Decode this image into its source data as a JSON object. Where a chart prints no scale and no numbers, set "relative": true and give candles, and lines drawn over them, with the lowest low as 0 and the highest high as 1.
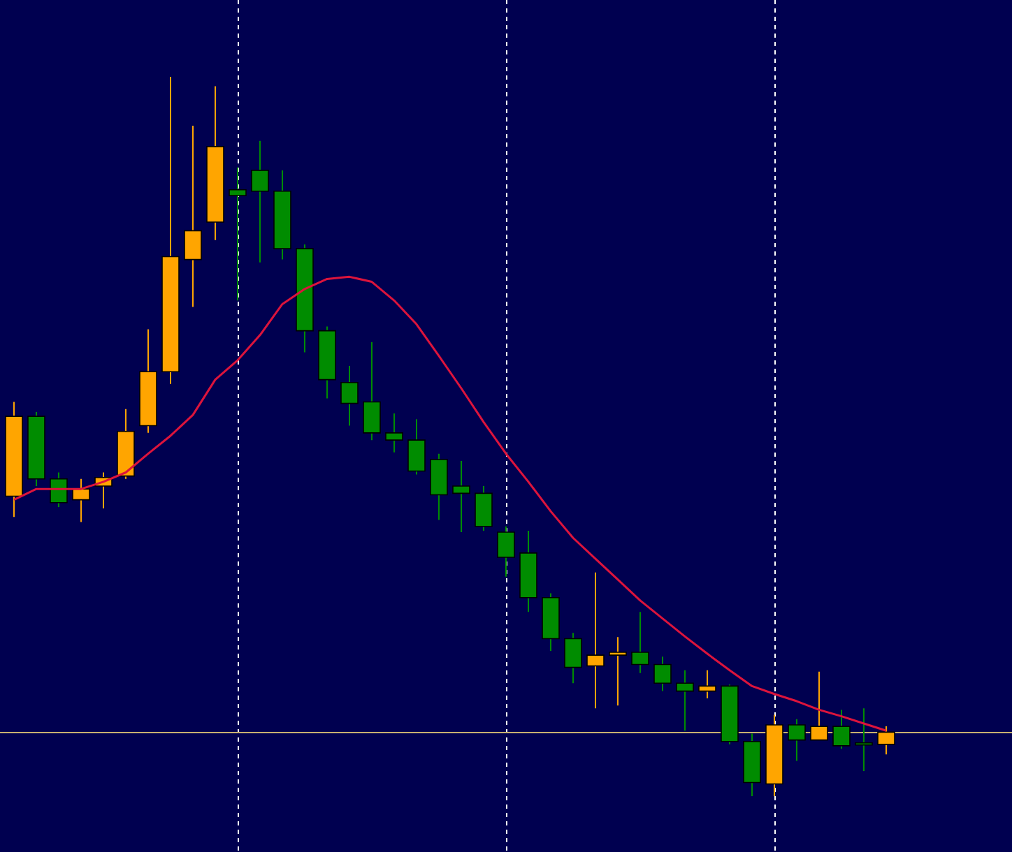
{
  "chart_data": {
    "type": "candlestick",
    "relative": true,
    "grid": "x",
    "legend": false,
    "categories": [
      null,
      null,
      null,
      null,
      null,
      null,
      null,
      null,
      null,
      null,
      null,
      null,
      null,
      null,
      null,
      null,
      null,
      null,
      null,
      null,
      null,
      null,
      null,
      null,
      null,
      null,
      null,
      null,
      null,
      null,
      null,
      null,
      null,
      null,
      null,
      null,
      null,
      null,
      null,
      null
    ],
    "ohlc": [
      [
        0.417,
        0.548,
        0.388,
        0.528
      ],
      [
        0.528,
        0.534,
        0.431,
        0.441
      ],
      [
        0.441,
        0.45,
        0.402,
        0.408
      ],
      [
        0.412,
        0.441,
        0.381,
        0.427
      ],
      [
        0.431,
        0.45,
        0.4,
        0.443
      ],
      [
        0.445,
        0.538,
        0.441,
        0.507
      ],
      [
        0.515,
        0.649,
        0.505,
        0.59
      ],
      [
        0.59,
        1.0,
        0.573,
        0.75
      ],
      [
        0.746,
        0.932,
        0.68,
        0.786
      ],
      [
        0.798,
        0.987,
        0.773,
        0.903
      ],
      [
        0.843,
        0.874,
        0.689,
        0.835
      ],
      [
        0.87,
        0.911,
        0.742,
        0.841
      ],
      [
        0.841,
        0.87,
        0.746,
        0.761
      ],
      [
        0.761,
        0.767,
        0.617,
        0.647
      ],
      [
        0.647,
        0.653,
        0.553,
        0.579
      ],
      [
        0.575,
        0.598,
        0.515,
        0.546
      ],
      [
        0.548,
        0.631,
        0.495,
        0.505
      ],
      [
        0.505,
        0.532,
        0.478,
        0.495
      ],
      [
        0.495,
        0.524,
        0.447,
        0.452
      ],
      [
        0.468,
        0.476,
        0.384,
        0.419
      ],
      [
        0.431,
        0.466,
        0.367,
        0.421
      ],
      [
        0.421,
        0.431,
        0.369,
        0.375
      ],
      [
        0.367,
        0.375,
        0.305,
        0.332
      ],
      [
        0.338,
        0.369,
        0.256,
        0.276
      ],
      [
        0.276,
        0.282,
        0.202,
        0.219
      ],
      [
        0.219,
        0.227,
        0.157,
        0.179
      ],
      [
        0.181,
        0.311,
        0.122,
        0.196
      ],
      [
        0.196,
        0.221,
        0.126,
        0.2
      ],
      [
        0.2,
        0.256,
        0.171,
        0.183
      ],
      [
        0.183,
        0.194,
        0.146,
        0.157
      ],
      [
        0.157,
        0.175,
        0.091,
        0.146
      ],
      [
        0.146,
        0.175,
        0.136,
        0.153
      ],
      [
        0.153,
        0.155,
        0.072,
        0.076
      ],
      [
        0.076,
        0.087,
        0,
        0.019
      ],
      [
        0.017,
        0.113,
        0,
        0.099
      ],
      [
        0.099,
        0.107,
        0.049,
        0.078
      ],
      [
        0.078,
        0.173,
        0.078,
        0.097
      ],
      [
        0.097,
        0.12,
        0.066,
        0.07
      ],
      [
        0.074,
        0.122,
        0.035,
        0.072
      ],
      [
        0.072,
        0.097,
        0.058,
        0.089
      ]
    ],
    "colors": [
      "#ffa500",
      "#008c00",
      "#008c00",
      "#ffa500",
      "#ffa500",
      "#ffa500",
      "#ffa500",
      "#ffa500",
      "#ffa500",
      "#ffa500",
      "#008c00",
      "#008c00",
      "#008c00",
      "#008c00",
      "#008c00",
      "#008c00",
      "#008c00",
      "#008c00",
      "#008c00",
      "#008c00",
      "#008c00",
      "#008c00",
      "#008c00",
      "#008c00",
      "#008c00",
      "#008c00",
      "#ffa500",
      "#ffa500",
      "#008c00",
      "#008c00",
      "#008c00",
      "#ffa500",
      "#008c00",
      "#008c00",
      "#ffa500",
      "#008c00",
      "#ffa500",
      "#008c00",
      "#008c00",
      "#ffa500"
    ],
    "series": [
      {
        "type": "line",
        "color": "#dc143c",
        "values": [
          0.412,
          0.427,
          0.427,
          0.427,
          0.437,
          0.45,
          0.476,
          0.501,
          0.53,
          0.579,
          0.606,
          0.641,
          0.684,
          0.705,
          0.719,
          0.722,
          0.715,
          0.689,
          0.656,
          0.612,
          0.567,
          0.52,
          0.476,
          0.437,
          0.396,
          0.359,
          0.33,
          0.301,
          0.272,
          0.247,
          0.222,
          0.198,
          0.175,
          0.153,
          0.142,
          0.132,
          0.12,
          0.111,
          0.101,
          0.091
        ]
      }
    ],
    "ref_lines": [
      {
        "axis": "y",
        "value": 0.089,
        "color": "#c8b070"
      }
    ]
  }
}
